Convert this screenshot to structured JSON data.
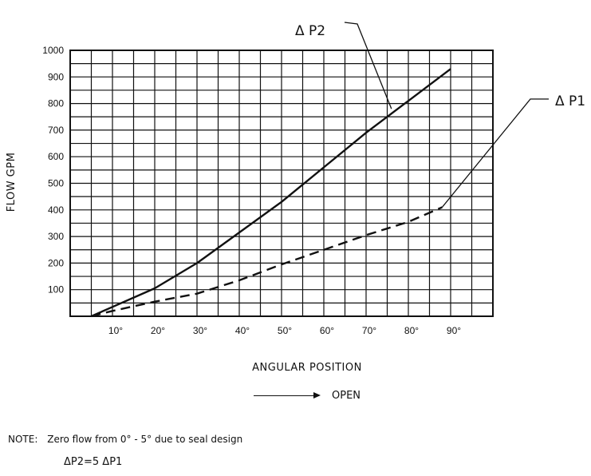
{
  "chart_data": {
    "type": "line",
    "xlabel": "ANGULAR POSITION",
    "ylabel": "FLOW GPM",
    "xlim": [
      0,
      100
    ],
    "ylim": [
      0,
      1000
    ],
    "x_ticks": [
      10,
      20,
      30,
      40,
      50,
      60,
      70,
      80,
      90
    ],
    "x_tick_labels": [
      "10°",
      "20°",
      "30°",
      "40°",
      "50°",
      "60°",
      "70°",
      "80°",
      "90°"
    ],
    "y_ticks": [
      100,
      200,
      300,
      400,
      500,
      600,
      700,
      800,
      900,
      1000
    ],
    "grid": true,
    "series": [
      {
        "name": "Δ P2",
        "style": "solid",
        "x": [
          5,
          10,
          20,
          30,
          40,
          50,
          60,
          70,
          80,
          90
        ],
        "y": [
          0,
          35,
          105,
          200,
          315,
          430,
          560,
          690,
          810,
          930
        ]
      },
      {
        "name": "Δ P1",
        "style": "dashed",
        "x": [
          5,
          10,
          20,
          30,
          40,
          50,
          60,
          70,
          80,
          88
        ],
        "y": [
          0,
          20,
          55,
          85,
          135,
          195,
          250,
          305,
          355,
          410
        ]
      }
    ],
    "annotations": {
      "open_label": "OPEN",
      "note_prefix": "NOTE:",
      "note_text": "Zero flow from 0° - 5° due to seal design",
      "note_formula": "ΔP2=5 ΔP1"
    }
  }
}
